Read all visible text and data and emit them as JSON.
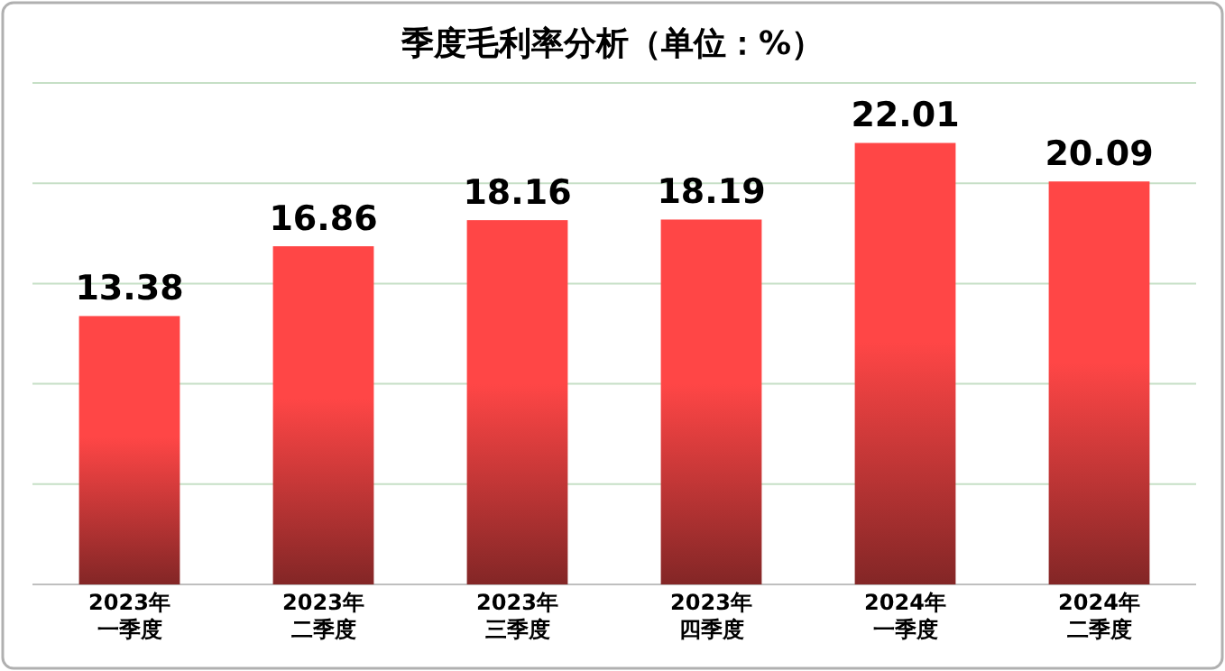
{
  "chart_data": {
    "type": "bar",
    "title": "季度毛利率分析（单位：%）",
    "categories": [
      "2023年一季度",
      "2023年二季度",
      "2023年三季度",
      "2023年四季度",
      "2024年一季度",
      "2024年二季度"
    ],
    "values": [
      13.38,
      16.86,
      18.16,
      18.19,
      22.01,
      20.09
    ],
    "color": "#ff4646",
    "ylim": [
      0,
      25
    ],
    "yticks": [
      {
        "value": 0,
        "label": null
      },
      {
        "value": 5,
        "label": null
      },
      {
        "value": 10,
        "label": null
      },
      {
        "value": 15,
        "label": null
      },
      {
        "value": 20,
        "label": null
      },
      {
        "value": 25,
        "label": null
      }
    ],
    "grid": "y",
    "tick_labels": "x",
    "data_labels": true
  }
}
